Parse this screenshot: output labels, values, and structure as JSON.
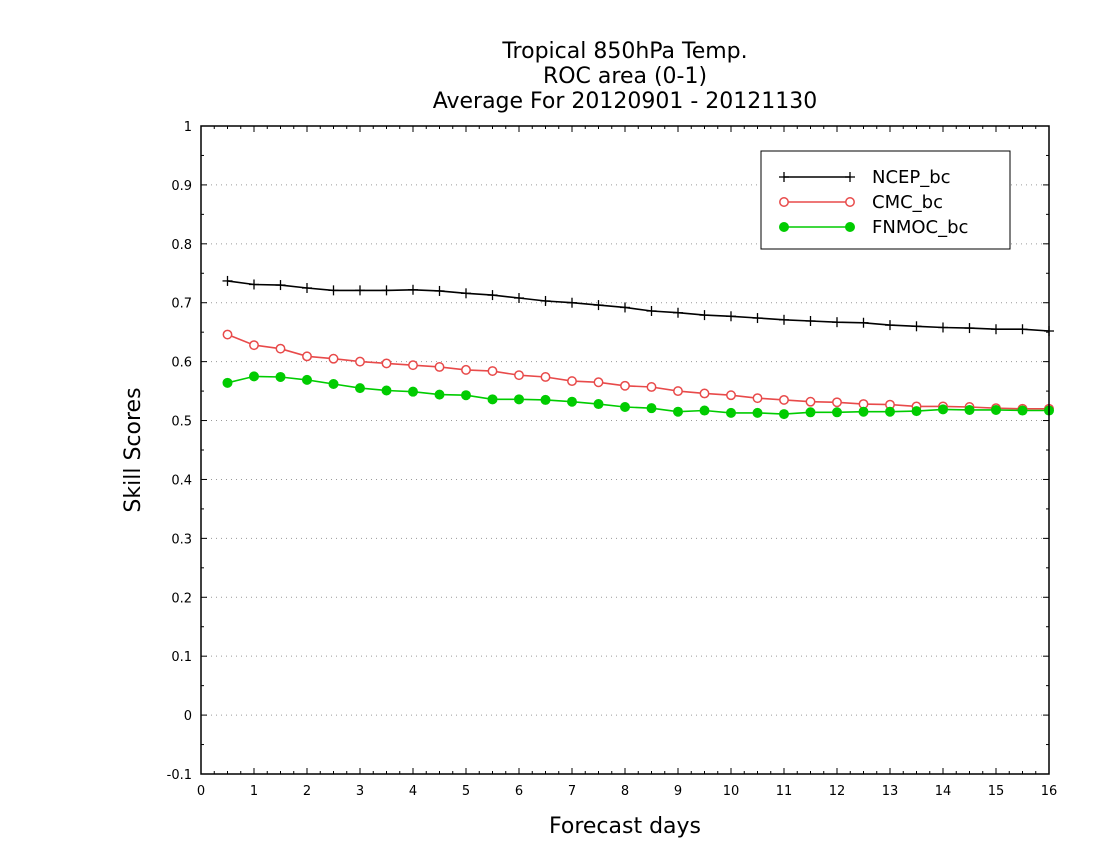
{
  "chart_data": {
    "type": "line",
    "title": [
      "Tropical 850hPa Temp.",
      "ROC area (0-1)",
      "Average For 20120901 - 20121130"
    ],
    "xlabel": "Forecast days",
    "ylabel": "Skill Scores",
    "xlim": [
      0,
      16
    ],
    "ylim": [
      -0.1,
      1
    ],
    "xticks": [
      0,
      1,
      2,
      3,
      4,
      5,
      6,
      7,
      8,
      9,
      10,
      11,
      12,
      13,
      14,
      15,
      16
    ],
    "xtick_labels": [
      "0",
      "1",
      "2",
      "3",
      "4",
      "5",
      "6",
      "7",
      "8",
      "9",
      "10",
      "11",
      "12",
      "13",
      "14",
      "15",
      "16"
    ],
    "yticks": [
      -0.1,
      0,
      0.1,
      0.2,
      0.3,
      0.4,
      0.5,
      0.6,
      0.7,
      0.8,
      0.9,
      1
    ],
    "ytick_labels": [
      "-0.1",
      "0",
      "0.1",
      "0.2",
      "0.3",
      "0.4",
      "0.5",
      "0.6",
      "0.7",
      "0.8",
      "0.9",
      "1"
    ],
    "grid": "horizontal-dotted",
    "legend_position": "top-right",
    "x": [
      0.5,
      1,
      1.5,
      2,
      2.5,
      3,
      3.5,
      4,
      4.5,
      5,
      5.5,
      6,
      6.5,
      7,
      7.5,
      8,
      8.5,
      9,
      9.5,
      10,
      10.5,
      11,
      11.5,
      12,
      12.5,
      13,
      13.5,
      14,
      14.5,
      15,
      15.5,
      16
    ],
    "series": [
      {
        "name": "NCEP_bc",
        "color": "#000000",
        "marker": "plus",
        "values": [
          0.737,
          0.731,
          0.73,
          0.725,
          0.721,
          0.721,
          0.721,
          0.722,
          0.72,
          0.716,
          0.713,
          0.708,
          0.703,
          0.7,
          0.696,
          0.692,
          0.686,
          0.683,
          0.679,
          0.677,
          0.674,
          0.671,
          0.669,
          0.667,
          0.666,
          0.662,
          0.66,
          0.658,
          0.657,
          0.655,
          0.655,
          0.652
        ]
      },
      {
        "name": "CMC_bc",
        "color": "#e84a4a",
        "marker": "open-circle",
        "values": [
          0.646,
          0.628,
          0.622,
          0.609,
          0.605,
          0.6,
          0.597,
          0.594,
          0.591,
          0.586,
          0.584,
          0.577,
          0.574,
          0.567,
          0.565,
          0.559,
          0.557,
          0.55,
          0.546,
          0.543,
          0.538,
          0.535,
          0.532,
          0.531,
          0.528,
          0.527,
          0.524,
          0.524,
          0.523,
          0.521,
          0.52,
          0.52
        ]
      },
      {
        "name": "FNMOC_bc",
        "color": "#00cc00",
        "marker": "filled-circle",
        "values": [
          0.564,
          0.575,
          0.574,
          0.569,
          0.562,
          0.555,
          0.551,
          0.549,
          0.544,
          0.543,
          0.536,
          0.536,
          0.535,
          0.532,
          0.528,
          0.523,
          0.521,
          0.515,
          0.517,
          0.513,
          0.513,
          0.511,
          0.514,
          0.514,
          0.515,
          0.515,
          0.516,
          0.519,
          0.518,
          0.518,
          0.517,
          0.517
        ]
      }
    ]
  }
}
